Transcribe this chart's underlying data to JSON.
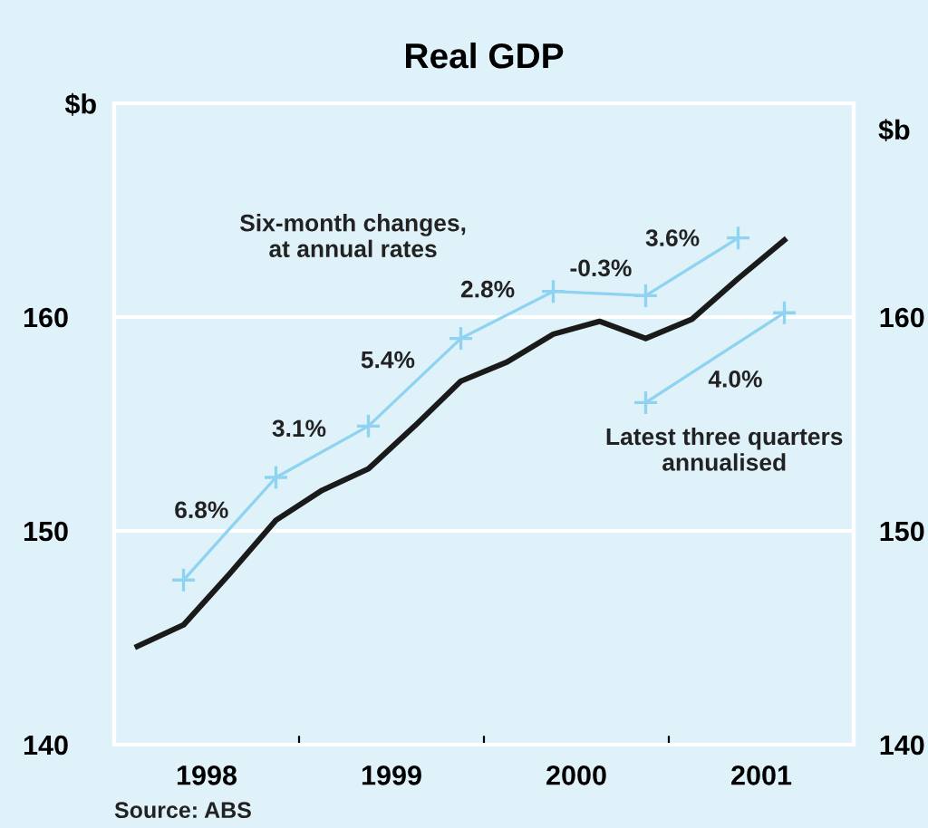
{
  "chart_data": {
    "type": "line",
    "title": "Real GDP",
    "ylabel": "$b",
    "y2label": "$b",
    "x": [
      1998.125,
      1998.375,
      1998.625,
      1998.875,
      1999.125,
      1999.375,
      1999.625,
      1999.875,
      2000.125,
      2000.375,
      2000.625,
      2000.875,
      2001.125,
      2001.375,
      2001.625
    ],
    "series": [
      {
        "color": "#1a1a1a",
        "values": [
          144.6,
          145.6,
          148.0,
          150.5,
          151.9,
          152.9,
          154.9,
          157.0,
          157.9,
          159.2,
          159.8,
          159.0,
          159.9,
          161.8,
          163.6
        ]
      },
      {
        "color": "#8fd3f0",
        "marker": "cross",
        "x": [
          1998.375,
          1998.875,
          1999.375,
          1999.875,
          2000.375,
          2000.875,
          2001.375
        ],
        "values": [
          147.7,
          152.5,
          154.9,
          159.0,
          161.2,
          161.0,
          163.7
        ]
      },
      {
        "color": "#8fd3f0",
        "marker": "cross",
        "x": [
          2000.875,
          2001.625
        ],
        "values": [
          156.0,
          160.2
        ]
      }
    ],
    "xlim": [
      1998,
      2002
    ],
    "xticks": [
      {
        "value": 1998.5,
        "label": "1998"
      },
      {
        "value": 1999,
        "label": null
      },
      {
        "value": 1999.5,
        "label": "1999"
      },
      {
        "value": 2000,
        "label": null
      },
      {
        "value": 2000.5,
        "label": "2000"
      },
      {
        "value": 2001,
        "label": null
      },
      {
        "value": 2001.5,
        "label": "2001"
      }
    ],
    "ylim": [
      140,
      170
    ],
    "yticks": [
      140,
      150,
      160
    ],
    "y2lim": [
      140,
      170
    ],
    "y2ticks": [
      140,
      150,
      160
    ],
    "grid": "y",
    "annotations": [
      "6.8%",
      "3.1%",
      "5.4%",
      "2.8%",
      "-0.3%",
      "3.6%",
      "4.0%",
      "Six-month changes,\nat annual rates",
      "Latest three quarters\nannualised",
      "Source: ABS"
    ]
  }
}
